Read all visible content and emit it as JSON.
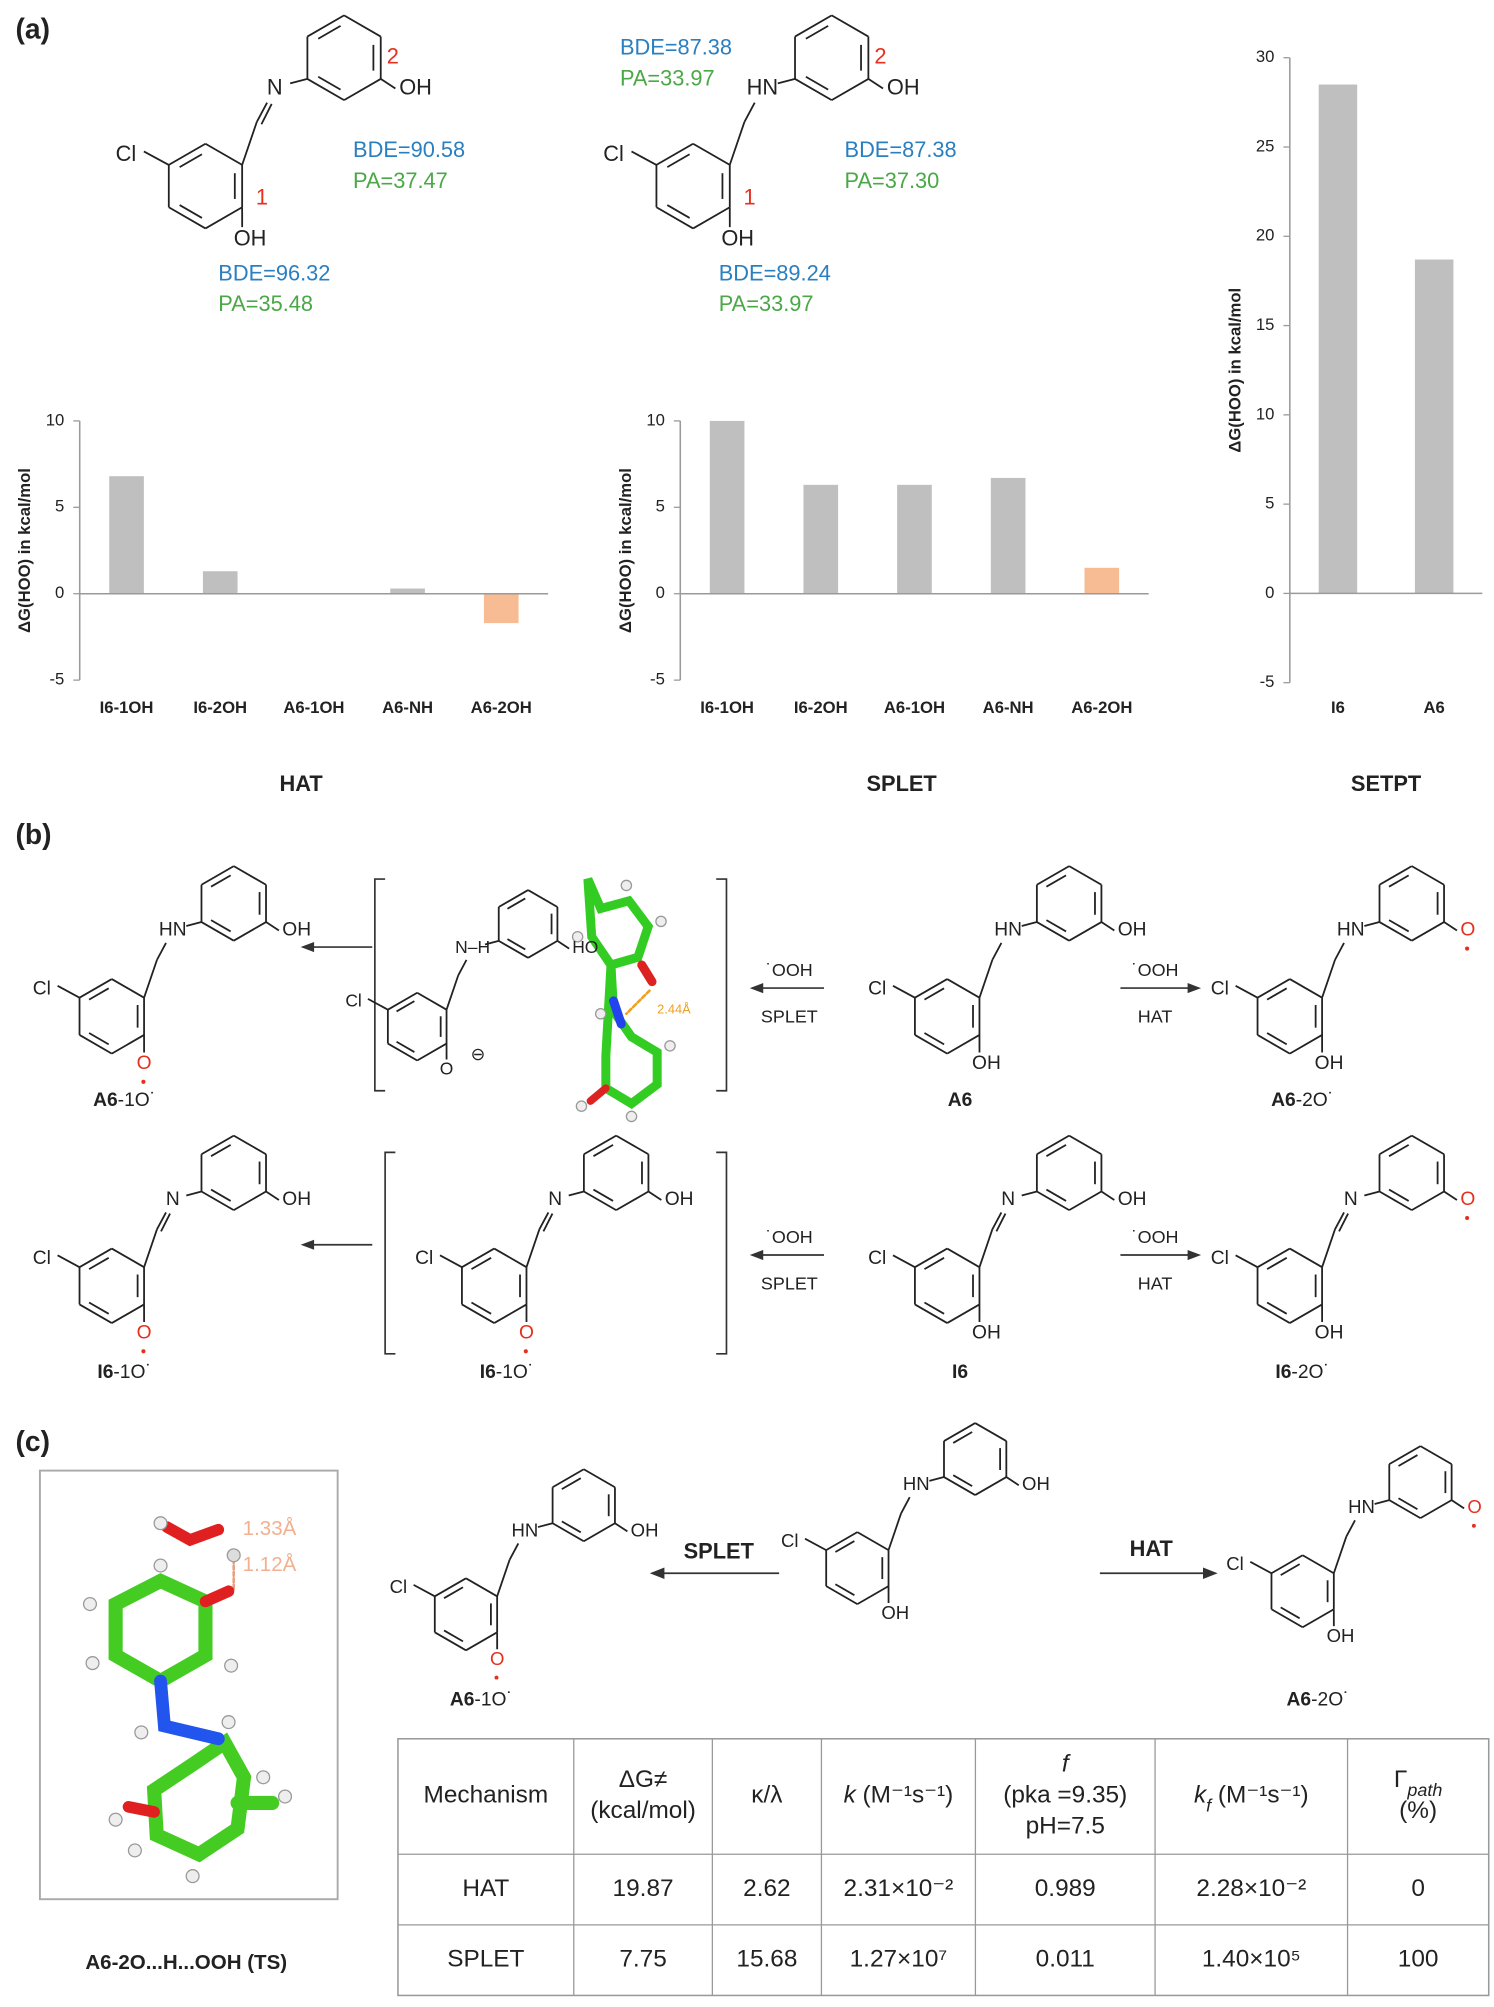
{
  "panel_labels": [
    "(a)",
    "(b)",
    "(c)"
  ],
  "panel_a": {
    "structures": [
      {
        "cl": "Cl",
        "n": "N",
        "double": true,
        "o1": "OH",
        "o2": "OH",
        "site1": "1",
        "site2": "2",
        "annotations": [
          {
            "bde": "BDE=90.58",
            "pa": "PA=37.47"
          },
          {
            "bde": "BDE=96.32",
            "pa": "PA=35.48"
          }
        ]
      },
      {
        "cl": "Cl",
        "n": "HN",
        "double": false,
        "o1": "OH",
        "o2": "OH",
        "site1": "1",
        "site2": "2",
        "annotations": [
          {
            "bde": "BDE=87.38",
            "pa": "PA=33.97"
          },
          {
            "bde": "BDE=87.38",
            "pa": "PA=37.30"
          },
          {
            "bde": "BDE=89.24",
            "pa": "PA=33.97"
          }
        ]
      }
    ]
  },
  "chart_data": [
    {
      "type": "bar",
      "x_label": "HAT",
      "y_label": "ΔG(HOO) in kcal/mol",
      "categories": [
        "I6-1OH",
        "I6-2OH",
        "A6-1OH",
        "A6-NH",
        "A6-2OH"
      ],
      "values": [
        6.8,
        1.3,
        0,
        0.3,
        -1.7
      ],
      "colors": [
        "#bfbfbf",
        "#bfbfbf",
        "#bfbfbf",
        "#bfbfbf",
        "#f8bc94"
      ],
      "ylim": [
        -5,
        10
      ],
      "yticks": [
        -5,
        0,
        5,
        10
      ]
    },
    {
      "type": "bar",
      "x_label": "SPLET",
      "y_label": "ΔG(HOO) in kcal/mol",
      "categories": [
        "I6-1OH",
        "I6-2OH",
        "A6-1OH",
        "A6-NH",
        "A6-2OH"
      ],
      "values": [
        10,
        6.3,
        6.3,
        6.7,
        1.5
      ],
      "colors": [
        "#bfbfbf",
        "#bfbfbf",
        "#bfbfbf",
        "#bfbfbf",
        "#f8bc94"
      ],
      "ylim": [
        -5,
        10
      ],
      "yticks": [
        -5,
        0,
        5,
        10
      ]
    },
    {
      "type": "bar",
      "x_label": "SETPT",
      "y_label": "ΔG(HOO) in kcal/mol",
      "categories": [
        "I6",
        "A6"
      ],
      "values": [
        28.5,
        18.7
      ],
      "colors": [
        "#bfbfbf",
        "#bfbfbf"
      ],
      "ylim": [
        -5,
        30
      ],
      "yticks": [
        -5,
        0,
        5,
        10,
        15,
        20,
        25,
        30
      ]
    }
  ],
  "panel_b": {
    "reagent": "˙OOH",
    "splet": "SPLET",
    "hat": "HAT",
    "model_label": "2.44Å",
    "rows": [
      [
        {
          "cl": "Cl",
          "n": "HN",
          "double": false,
          "o1": "O",
          "o2": "OH",
          "radical": "o1",
          "name": {
            "bold": "A6",
            "rest": "-1O˙"
          }
        },
        {
          "cl": "Cl",
          "n": "N–H",
          "double": false,
          "o1": "O",
          "o2": "HO",
          "charge": "⊖"
        },
        {
          "cl": "Cl",
          "n": "HN",
          "double": false,
          "o1": "OH",
          "o2": "OH",
          "name": {
            "bold": "A6",
            "rest": ""
          }
        },
        {
          "cl": "Cl",
          "n": "HN",
          "double": false,
          "o1": "OH",
          "o2": "O",
          "radical": "o2",
          "name": {
            "bold": "A6",
            "rest": "-2O˙"
          }
        }
      ],
      [
        {
          "cl": "Cl",
          "n": "N",
          "double": true,
          "o1": "O",
          "o2": "OH",
          "radical": "o1",
          "name": {
            "bold": "I6",
            "rest": "-1O˙"
          }
        },
        {
          "cl": "Cl",
          "n": "N",
          "double": true,
          "o1": "O",
          "o2": "OH",
          "radical": "o1",
          "name": {
            "bold": "I6",
            "rest": "-1O˙"
          }
        },
        {
          "cl": "Cl",
          "n": "N",
          "double": true,
          "o1": "OH",
          "o2": "OH",
          "name": {
            "bold": "I6",
            "rest": ""
          }
        },
        {
          "cl": "Cl",
          "n": "N",
          "double": true,
          "o1": "OH",
          "o2": "O",
          "radical": "o2",
          "name": {
            "bold": "I6",
            "rest": "-2O˙"
          }
        }
      ]
    ]
  },
  "panel_c": {
    "ts": {
      "distances": [
        "1.33Å",
        "1.12Å"
      ],
      "caption": "A6-2O...H...OOH (TS)"
    },
    "arrows": [
      "SPLET",
      "HAT"
    ],
    "structures": [
      {
        "cl": "Cl",
        "n": "HN",
        "double": false,
        "o1": "O",
        "o2": "OH",
        "radical": "o1",
        "name": {
          "bold": "A6",
          "rest": "-1O˙"
        }
      },
      {
        "cl": "Cl",
        "n": "HN",
        "double": false,
        "o1": "OH",
        "o2": "OH"
      },
      {
        "cl": "Cl",
        "n": "HN",
        "double": false,
        "o1": "OH",
        "o2": "O",
        "radical": "o2",
        "name": {
          "bold": "A6",
          "rest": "-2O˙"
        }
      }
    ],
    "table": {
      "header": [
        [
          [
            {
              "text": "Mechanism",
              "style": "normal"
            }
          ]
        ],
        [
          [
            {
              "text": "ΔG≠",
              "style": "normal"
            }
          ],
          [
            {
              "text": "(kcal/mol)",
              "style": "normal"
            }
          ]
        ],
        [
          [
            {
              "text": "κ/λ",
              "style": "normal"
            }
          ]
        ],
        [
          [
            {
              "text": "k",
              "style": "italic"
            },
            {
              "text": " (M⁻¹s⁻¹)",
              "style": "normal"
            }
          ]
        ],
        [
          [
            {
              "text": "f",
              "style": "italic"
            }
          ],
          [
            {
              "text": "(pka =9.35)",
              "style": "normal"
            }
          ],
          [
            {
              "text": "pH=7.5",
              "style": "normal"
            }
          ]
        ],
        [
          [
            {
              "text": "k",
              "style": "italic"
            },
            {
              "text": "f",
              "style": "sub-italic"
            },
            {
              "text": " (M⁻¹s⁻¹)",
              "style": "normal"
            }
          ]
        ],
        [
          [
            {
              "text": "Γ",
              "style": "normal"
            },
            {
              "text": "path",
              "style": "sub-italic"
            }
          ],
          [
            {
              "text": "(%)",
              "style": "normal"
            }
          ]
        ]
      ],
      "rows": [
        [
          "HAT",
          "19.87",
          "2.62",
          "2.31×10⁻²",
          "0.989",
          "2.28×10⁻²",
          "0"
        ],
        [
          "SPLET",
          "7.75",
          "15.68",
          "1.27×10⁷",
          "0.011",
          "1.40×10⁵",
          "100"
        ]
      ]
    }
  }
}
